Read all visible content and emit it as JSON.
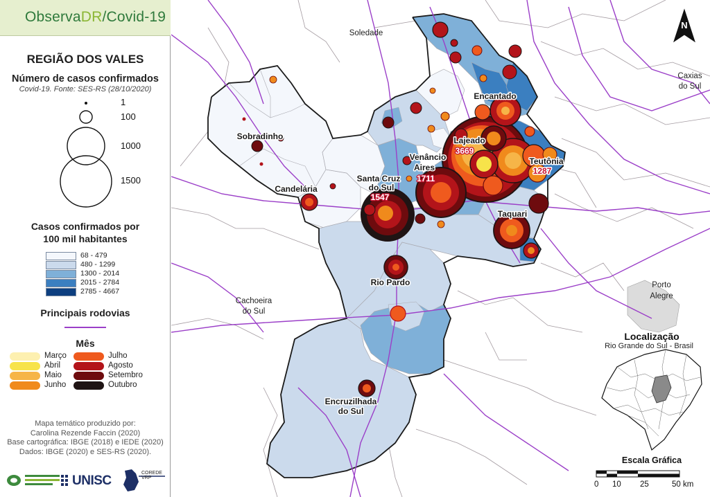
{
  "brand": {
    "part1": "Observa",
    "part2": "DR",
    "part3": "/Covid-19"
  },
  "legend": {
    "region_title": "REGIÃO DOS VALES",
    "cases_title": "Número de casos confirmados",
    "cases_source": "Covid-19. Fonte: SES-RS (28/10/2020)",
    "circle_labels": [
      "1",
      "100",
      "1000",
      "1500"
    ],
    "rate_title_line1": "Casos confirmados por",
    "rate_title_line2": "100 mil habitantes",
    "rate_classes": [
      {
        "label": "68 - 479",
        "color": "#f4f7fc"
      },
      {
        "label": "480 - 1299",
        "color": "#cbdaec"
      },
      {
        "label": "1300 - 2014",
        "color": "#7fb0d8"
      },
      {
        "label": "2015 - 2784",
        "color": "#3b7fc0"
      },
      {
        "label": "2785 - 4667",
        "color": "#0d3f80"
      }
    ],
    "roads_title": "Principais rodovias",
    "road_color": "#9b3fc8",
    "month_title": "Mês",
    "months": [
      {
        "label": "Março",
        "color": "#fdf0b0"
      },
      {
        "label": "Abril",
        "color": "#f7e34a"
      },
      {
        "label": "Maio",
        "color": "#f6b548"
      },
      {
        "label": "Junho",
        "color": "#f08a1c"
      },
      {
        "label": "Julho",
        "color": "#ef5a1e"
      },
      {
        "label": "Agosto",
        "color": "#b3141a"
      },
      {
        "label": "Setembro",
        "color": "#6e0b0e"
      },
      {
        "label": "Outubro",
        "color": "#1f1414"
      }
    ],
    "credits": [
      "Mapa temático produzido por:",
      "Carolina Rezende Faccin (2020)",
      "Base cartográfica: IBGE (2018) e IEDE (2020)",
      "Dados: IBGE (2020) e SES-RS (2020)."
    ],
    "logo_unisc": "UNISC",
    "logo_corede": "COREDE VRP"
  },
  "map": {
    "places": [
      {
        "name": "Soledade"
      },
      {
        "name": "Caxias",
        "name2": "do Sul"
      },
      {
        "name": "Cachoeira",
        "name2": "do Sul"
      },
      {
        "name": "Porto",
        "name2": "Alegre"
      }
    ],
    "cities": [
      {
        "name": "Encantado"
      },
      {
        "name": "Sobradinho"
      },
      {
        "name": "Lajeado",
        "count": "3669"
      },
      {
        "name": "Venâncio",
        "name2": "Aires",
        "count": "1711"
      },
      {
        "name": "Teutônia",
        "count": "1287"
      },
      {
        "name": "Santa Cruz",
        "name2": "do Sul",
        "count": "1547"
      },
      {
        "name": "Candelária"
      },
      {
        "name": "Taquari"
      },
      {
        "name": "Rio Pardo"
      },
      {
        "name": "Encruzilhada",
        "name2": "do Sul"
      }
    ],
    "north_label": "N",
    "location_title": "Localização",
    "location_subtitle": "Rio Grande do Sul - Brasil",
    "scale_title": "Escala Gráfica",
    "scale_labels": [
      "0",
      "10",
      "25",
      "50 km"
    ]
  }
}
